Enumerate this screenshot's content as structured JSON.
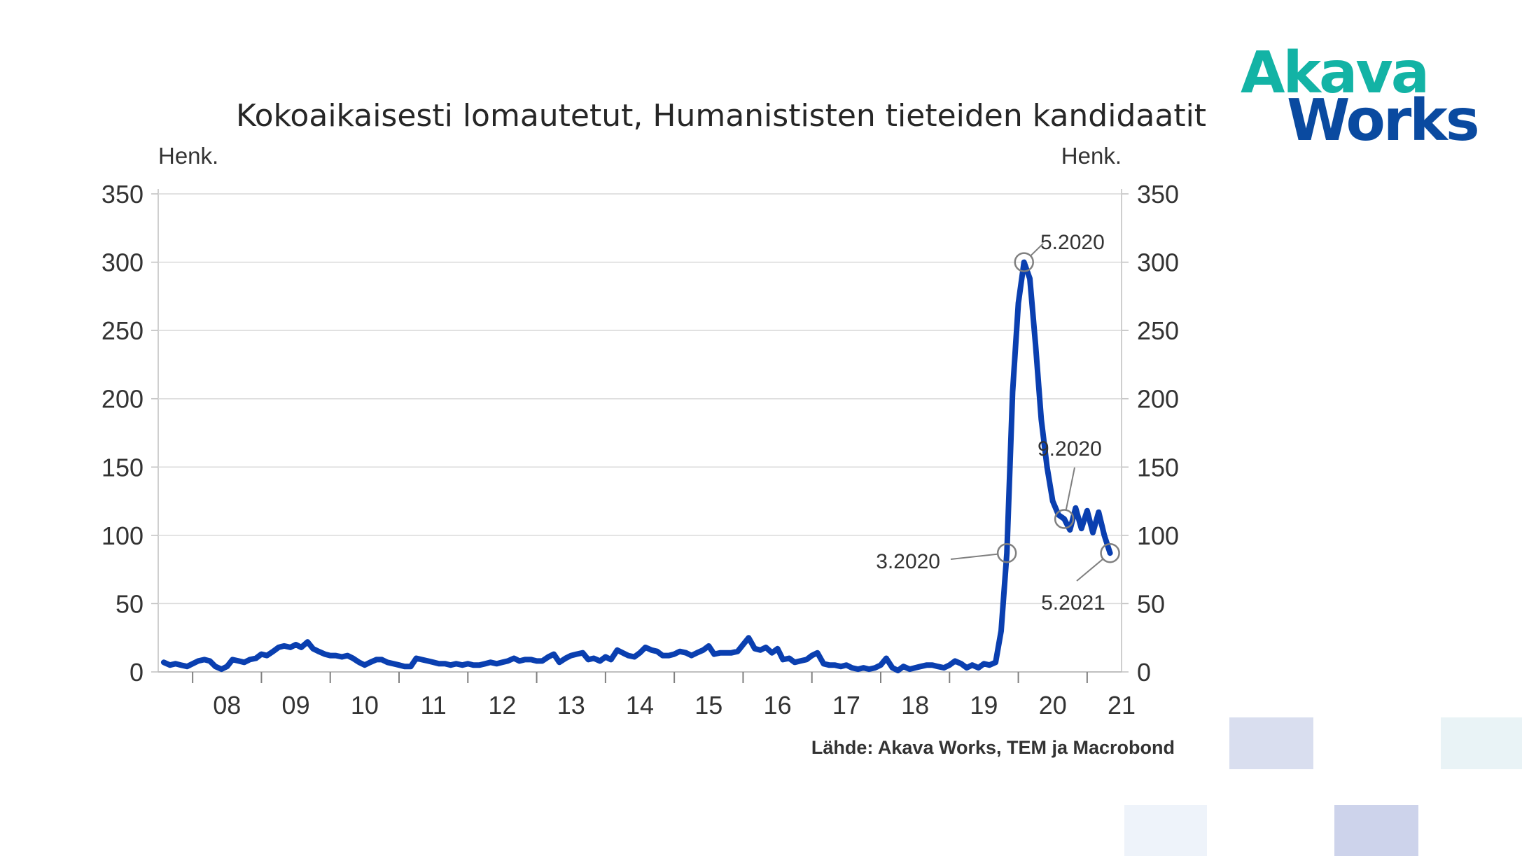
{
  "logo": {
    "line1": "Akava",
    "line2": "Works",
    "colors": {
      "akava": "#13b3a5",
      "works": "#0a4aa0"
    }
  },
  "source_text": "Lähde: Akava Works, TEM ja Macrobond",
  "decor_colors": [
    "#d9deef",
    "#e9f3f6",
    "#eef3fa",
    "#cdd3eb"
  ],
  "chart_data": {
    "type": "line",
    "title": "Kokoaikaisesti lomautetut, Humanististen tieteiden kandidaatit",
    "ylabel_left": "Henk.",
    "ylabel_right": "Henk.",
    "ylim": [
      0,
      350
    ],
    "yticks": [
      "0",
      "50",
      "100",
      "150",
      "200",
      "250",
      "300",
      "350"
    ],
    "xlim": [
      2007.5,
      2021.5
    ],
    "xtick_labels": [
      "08",
      "09",
      "10",
      "11",
      "12",
      "13",
      "14",
      "15",
      "16",
      "17",
      "18",
      "19",
      "20",
      "21"
    ],
    "grid": true,
    "line_color": "#0a3fb0",
    "series": [
      {
        "points": [
          [
            2007.58,
            7
          ],
          [
            2007.67,
            5
          ],
          [
            2007.75,
            6
          ],
          [
            2007.83,
            5
          ],
          [
            2007.92,
            4
          ],
          [
            2008.0,
            6
          ],
          [
            2008.08,
            8
          ],
          [
            2008.17,
            9
          ],
          [
            2008.25,
            8
          ],
          [
            2008.33,
            4
          ],
          [
            2008.42,
            2
          ],
          [
            2008.5,
            4
          ],
          [
            2008.58,
            9
          ],
          [
            2008.67,
            8
          ],
          [
            2008.75,
            7
          ],
          [
            2008.83,
            9
          ],
          [
            2008.92,
            10
          ],
          [
            2009.0,
            13
          ],
          [
            2009.08,
            12
          ],
          [
            2009.17,
            15
          ],
          [
            2009.25,
            18
          ],
          [
            2009.33,
            19
          ],
          [
            2009.42,
            18
          ],
          [
            2009.5,
            20
          ],
          [
            2009.58,
            18
          ],
          [
            2009.67,
            22
          ],
          [
            2009.75,
            17
          ],
          [
            2009.83,
            15
          ],
          [
            2009.92,
            13
          ],
          [
            2010.0,
            12
          ],
          [
            2010.08,
            12
          ],
          [
            2010.17,
            11
          ],
          [
            2010.25,
            12
          ],
          [
            2010.33,
            10
          ],
          [
            2010.42,
            7
          ],
          [
            2010.5,
            5
          ],
          [
            2010.58,
            7
          ],
          [
            2010.67,
            9
          ],
          [
            2010.75,
            9
          ],
          [
            2010.83,
            7
          ],
          [
            2010.92,
            6
          ],
          [
            2011.0,
            5
          ],
          [
            2011.08,
            4
          ],
          [
            2011.17,
            4
          ],
          [
            2011.25,
            10
          ],
          [
            2011.33,
            9
          ],
          [
            2011.42,
            8
          ],
          [
            2011.5,
            7
          ],
          [
            2011.58,
            6
          ],
          [
            2011.67,
            6
          ],
          [
            2011.75,
            5
          ],
          [
            2011.83,
            6
          ],
          [
            2011.92,
            5
          ],
          [
            2012.0,
            6
          ],
          [
            2012.08,
            5
          ],
          [
            2012.17,
            5
          ],
          [
            2012.25,
            6
          ],
          [
            2012.33,
            7
          ],
          [
            2012.42,
            6
          ],
          [
            2012.5,
            7
          ],
          [
            2012.58,
            8
          ],
          [
            2012.67,
            10
          ],
          [
            2012.75,
            8
          ],
          [
            2012.83,
            9
          ],
          [
            2012.92,
            9
          ],
          [
            2013.0,
            8
          ],
          [
            2013.08,
            8
          ],
          [
            2013.17,
            11
          ],
          [
            2013.25,
            13
          ],
          [
            2013.33,
            7
          ],
          [
            2013.42,
            10
          ],
          [
            2013.5,
            12
          ],
          [
            2013.58,
            13
          ],
          [
            2013.67,
            14
          ],
          [
            2013.75,
            9
          ],
          [
            2013.83,
            10
          ],
          [
            2013.92,
            8
          ],
          [
            2014.0,
            11
          ],
          [
            2014.08,
            9
          ],
          [
            2014.17,
            16
          ],
          [
            2014.25,
            14
          ],
          [
            2014.33,
            12
          ],
          [
            2014.42,
            11
          ],
          [
            2014.5,
            14
          ],
          [
            2014.58,
            18
          ],
          [
            2014.67,
            16
          ],
          [
            2014.75,
            15
          ],
          [
            2014.83,
            12
          ],
          [
            2014.92,
            12
          ],
          [
            2015.0,
            13
          ],
          [
            2015.08,
            15
          ],
          [
            2015.17,
            14
          ],
          [
            2015.25,
            12
          ],
          [
            2015.33,
            14
          ],
          [
            2015.42,
            16
          ],
          [
            2015.5,
            19
          ],
          [
            2015.58,
            13
          ],
          [
            2015.67,
            14
          ],
          [
            2015.75,
            14
          ],
          [
            2015.83,
            14
          ],
          [
            2015.92,
            15
          ],
          [
            2016.0,
            20
          ],
          [
            2016.08,
            25
          ],
          [
            2016.17,
            17
          ],
          [
            2016.25,
            16
          ],
          [
            2016.33,
            18
          ],
          [
            2016.42,
            14
          ],
          [
            2016.5,
            17
          ],
          [
            2016.58,
            9
          ],
          [
            2016.67,
            10
          ],
          [
            2016.75,
            7
          ],
          [
            2016.83,
            8
          ],
          [
            2016.92,
            9
          ],
          [
            2017.0,
            12
          ],
          [
            2017.08,
            14
          ],
          [
            2017.17,
            6
          ],
          [
            2017.25,
            5
          ],
          [
            2017.33,
            5
          ],
          [
            2017.42,
            4
          ],
          [
            2017.5,
            5
          ],
          [
            2017.58,
            3
          ],
          [
            2017.67,
            2
          ],
          [
            2017.75,
            3
          ],
          [
            2017.83,
            2
          ],
          [
            2017.92,
            3
          ],
          [
            2018.0,
            5
          ],
          [
            2018.08,
            10
          ],
          [
            2018.17,
            3
          ],
          [
            2018.25,
            1
          ],
          [
            2018.33,
            4
          ],
          [
            2018.42,
            2
          ],
          [
            2018.5,
            3
          ],
          [
            2018.58,
            4
          ],
          [
            2018.67,
            5
          ],
          [
            2018.75,
            5
          ],
          [
            2018.83,
            4
          ],
          [
            2018.92,
            3
          ],
          [
            2019.0,
            5
          ],
          [
            2019.08,
            8
          ],
          [
            2019.17,
            6
          ],
          [
            2019.25,
            3
          ],
          [
            2019.33,
            5
          ],
          [
            2019.42,
            3
          ],
          [
            2019.5,
            6
          ],
          [
            2019.58,
            5
          ],
          [
            2019.67,
            7
          ],
          [
            2019.75,
            30
          ],
          [
            2019.833,
            87
          ],
          [
            2019.917,
            205
          ],
          [
            2020.0,
            270
          ],
          [
            2020.083,
            300
          ],
          [
            2020.167,
            288
          ],
          [
            2020.25,
            240
          ],
          [
            2020.333,
            185
          ],
          [
            2020.417,
            150
          ],
          [
            2020.5,
            125
          ],
          [
            2020.583,
            115
          ],
          [
            2020.667,
            112
          ],
          [
            2020.75,
            104
          ],
          [
            2020.833,
            120
          ],
          [
            2020.917,
            105
          ],
          [
            2021.0,
            118
          ],
          [
            2021.083,
            102
          ],
          [
            2021.167,
            117
          ],
          [
            2021.25,
            100
          ],
          [
            2021.333,
            87
          ]
        ]
      }
    ],
    "annotations": [
      {
        "label": "5.2020",
        "x": 2020.083,
        "y": 300
      },
      {
        "label": "9.2020",
        "x": 2020.667,
        "y": 112
      },
      {
        "label": "3.2020",
        "x": 2019.833,
        "y": 87
      },
      {
        "label": "5.2021",
        "x": 2021.333,
        "y": 87
      }
    ]
  }
}
